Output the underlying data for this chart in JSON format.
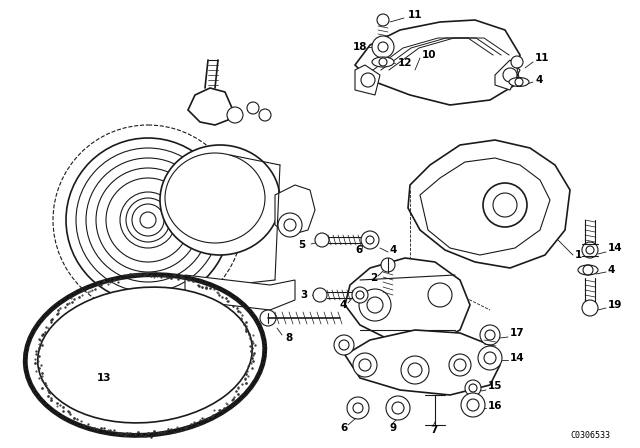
{
  "bg_color": "#ffffff",
  "line_color": "#1a1a1a",
  "fig_width": 6.4,
  "fig_height": 4.48,
  "dpi": 100,
  "catalog_number": "C0306533",
  "title_color": "#000000"
}
